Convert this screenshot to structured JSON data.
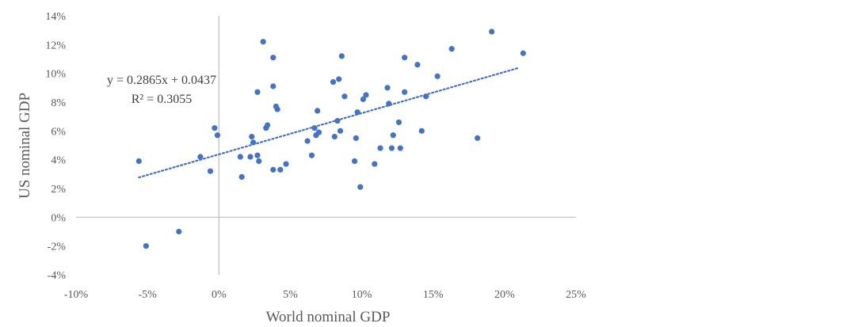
{
  "chart_data": {
    "type": "scatter",
    "xlabel": "World nominal GDP",
    "ylabel": "US nominal GDP",
    "xlim": [
      -0.1,
      0.25
    ],
    "ylim": [
      -0.04,
      0.14
    ],
    "x_ticks": [
      -0.1,
      -0.05,
      0.0,
      0.05,
      0.1,
      0.15,
      0.2,
      0.25
    ],
    "x_tick_labels": [
      "-10%",
      "-5%",
      "0%",
      "5%",
      "10%",
      "15%",
      "20%",
      "25%"
    ],
    "y_ticks": [
      -0.04,
      -0.02,
      0.0,
      0.02,
      0.04,
      0.06,
      0.08,
      0.1,
      0.12,
      0.14
    ],
    "y_tick_labels": [
      "-4%",
      "-2%",
      "0%",
      "2%",
      "4%",
      "6%",
      "8%",
      "10%",
      "12%",
      "14%"
    ],
    "grid": false,
    "marker_color": "#4472C4",
    "axis_color": "#BFBFBF",
    "trendline": {
      "type": "linear",
      "slope": 0.2865,
      "intercept": 0.0437,
      "x_range": [
        -0.056,
        0.21
      ],
      "equation_label": "y = 0.2865x + 0.0437",
      "r2_label": "R² = 0.3055",
      "style": "dotted"
    },
    "series": [
      {
        "points": [
          [
            -0.056,
            0.039
          ],
          [
            -0.051,
            -0.02
          ],
          [
            -0.028,
            -0.01
          ],
          [
            -0.013,
            0.042
          ],
          [
            -0.006,
            0.032
          ],
          [
            -0.003,
            0.062
          ],
          [
            -0.001,
            0.057
          ],
          [
            0.015,
            0.042
          ],
          [
            0.016,
            0.028
          ],
          [
            0.022,
            0.042
          ],
          [
            0.023,
            0.056
          ],
          [
            0.024,
            0.052
          ],
          [
            0.027,
            0.087
          ],
          [
            0.027,
            0.043
          ],
          [
            0.028,
            0.039
          ],
          [
            0.031,
            0.122
          ],
          [
            0.033,
            0.062
          ],
          [
            0.034,
            0.064
          ],
          [
            0.038,
            0.111
          ],
          [
            0.038,
            0.091
          ],
          [
            0.038,
            0.033
          ],
          [
            0.04,
            0.077
          ],
          [
            0.041,
            0.075
          ],
          [
            0.043,
            0.033
          ],
          [
            0.047,
            0.037
          ],
          [
            0.062,
            0.053
          ],
          [
            0.065,
            0.043
          ],
          [
            0.067,
            0.062
          ],
          [
            0.068,
            0.057
          ],
          [
            0.069,
            0.074
          ],
          [
            0.07,
            0.059
          ],
          [
            0.08,
            0.094
          ],
          [
            0.081,
            0.056
          ],
          [
            0.083,
            0.067
          ],
          [
            0.084,
            0.096
          ],
          [
            0.085,
            0.06
          ],
          [
            0.086,
            0.112
          ],
          [
            0.088,
            0.084
          ],
          [
            0.095,
            0.039
          ],
          [
            0.096,
            0.055
          ],
          [
            0.097,
            0.073
          ],
          [
            0.099,
            0.021
          ],
          [
            0.101,
            0.082
          ],
          [
            0.103,
            0.085
          ],
          [
            0.109,
            0.037
          ],
          [
            0.113,
            0.048
          ],
          [
            0.118,
            0.09
          ],
          [
            0.119,
            0.079
          ],
          [
            0.121,
            0.048
          ],
          [
            0.122,
            0.057
          ],
          [
            0.126,
            0.066
          ],
          [
            0.127,
            0.048
          ],
          [
            0.13,
            0.111
          ],
          [
            0.13,
            0.087
          ],
          [
            0.139,
            0.106
          ],
          [
            0.142,
            0.06
          ],
          [
            0.145,
            0.084
          ],
          [
            0.153,
            0.098
          ],
          [
            0.163,
            0.117
          ],
          [
            0.181,
            0.055
          ],
          [
            0.191,
            0.129
          ],
          [
            0.213,
            0.114
          ]
        ]
      }
    ]
  }
}
